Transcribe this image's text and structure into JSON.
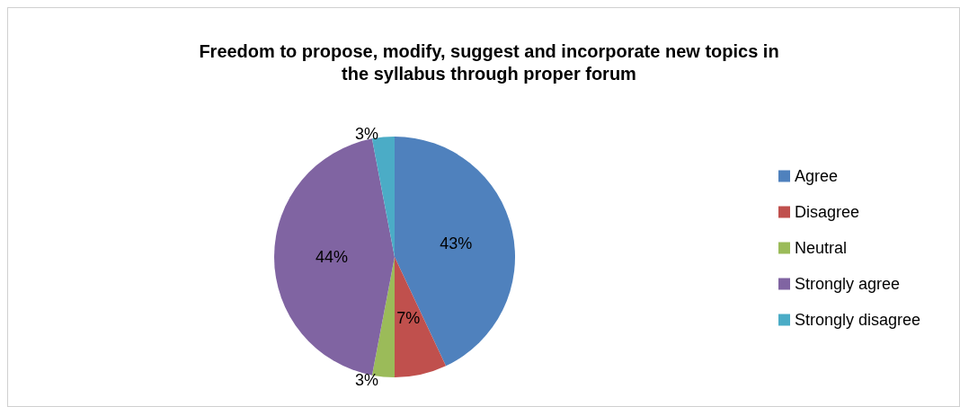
{
  "chart_data": {
    "type": "pie",
    "title": "Freedom to propose, modify, suggest and incorporate new topics in\nthe syllabus through proper forum",
    "categories": [
      "Agree",
      "Disagree",
      "Neutral",
      "Strongly agree",
      "Strongly disagree"
    ],
    "values": [
      43,
      7,
      3,
      44,
      3
    ],
    "colors": [
      "#4f81bd",
      "#c0504d",
      "#9bbb59",
      "#8064a2",
      "#4bacc6"
    ],
    "value_labels": [
      "43%",
      "7%",
      "3%",
      "44%",
      "3%"
    ],
    "legend": "right"
  }
}
